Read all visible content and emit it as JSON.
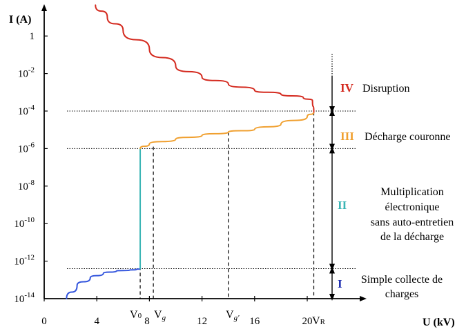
{
  "chart_data": {
    "type": "line",
    "title": "",
    "xlabel": "U (kV)",
    "ylabel": "I (A)",
    "x_scale": "linear",
    "y_scale": "log",
    "xlim": [
      0,
      21.5
    ],
    "ylim_exponent": [
      -14,
      1.6
    ],
    "x_ticks": [
      "0",
      "4",
      "8",
      "12",
      "16",
      "20"
    ],
    "y_ticks": [
      {
        "base": "10",
        "exp": "-14"
      },
      {
        "base": "10",
        "exp": "-12"
      },
      {
        "base": "10",
        "exp": "-10"
      },
      {
        "base": "10",
        "exp": "-8"
      },
      {
        "base": "10",
        "exp": "-6"
      },
      {
        "base": "10",
        "exp": "-4"
      },
      {
        "base": "10",
        "exp": "-2"
      },
      {
        "base": "1",
        "exp": ""
      }
    ],
    "grid": false,
    "series": [
      {
        "region": "I",
        "color": "#3355dd",
        "x_kV": [
          1.7,
          2.5,
          3.5,
          4.5,
          5.5,
          6.5,
          7.0,
          7.3
        ],
        "log10_I": [
          -14.0,
          -13.3,
          -12.9,
          -12.65,
          -12.52,
          -12.48,
          -12.45,
          -12.4
        ]
      },
      {
        "region": "II",
        "color": "#3ab5b5",
        "x_kV": [
          7.3,
          7.3
        ],
        "log10_I": [
          -12.4,
          -6.0
        ]
      },
      {
        "region": "III",
        "color": "#f0a030",
        "x_kV": [
          7.3,
          8.0,
          10.0,
          12.0,
          14.0,
          16.0,
          18.0,
          20.0,
          20.5
        ],
        "log10_I": [
          -6.0,
          -5.75,
          -5.5,
          -5.3,
          -5.12,
          -4.98,
          -4.7,
          -4.3,
          -4.05
        ]
      },
      {
        "region": "IV",
        "color": "#d42a1f",
        "x_kV": [
          20.5,
          20.4,
          19.7,
          18.0,
          16.0,
          14.0,
          12.0,
          10.0,
          8.0,
          6.0,
          4.8,
          3.9
        ],
        "log10_I": [
          -4.05,
          -3.45,
          -3.28,
          -3.1,
          -2.9,
          -2.55,
          -2.2,
          -1.6,
          -0.7,
          0.3,
          1.0,
          1.65
        ]
      }
    ],
    "threshold_levels_log10_I": [
      -12.4,
      -6.0,
      -4.0
    ],
    "voltage_markers": [
      {
        "label": "V",
        "sub": "0",
        "x_kV": 7.3
      },
      {
        "label": "V",
        "sub": "g",
        "x_kV": 8.3
      },
      {
        "label": "V",
        "sub": "g'",
        "x_kV": 14.0
      },
      {
        "label": "V",
        "sub": "R",
        "x_kV": 20.5
      }
    ],
    "regions": [
      {
        "roman": "IV",
        "color": "#d42a1f",
        "lines": [
          "Disruption"
        ],
        "from": 1.3,
        "to": -4.0
      },
      {
        "roman": "III",
        "color": "#f0a030",
        "lines": [
          "Décharge couronne"
        ],
        "from": -4.0,
        "to": -6.0
      },
      {
        "roman": "II",
        "color": "#3ab5b5",
        "lines": [
          "Multiplication",
          "électronique",
          "sans auto-entretien",
          "de la décharge"
        ],
        "from": -6.0,
        "to": -12.4
      },
      {
        "roman": "I",
        "color": "#1f2fb0",
        "lines": [
          "Simple collecte de",
          "charges"
        ],
        "from": -12.4,
        "to": -14.0
      }
    ]
  }
}
